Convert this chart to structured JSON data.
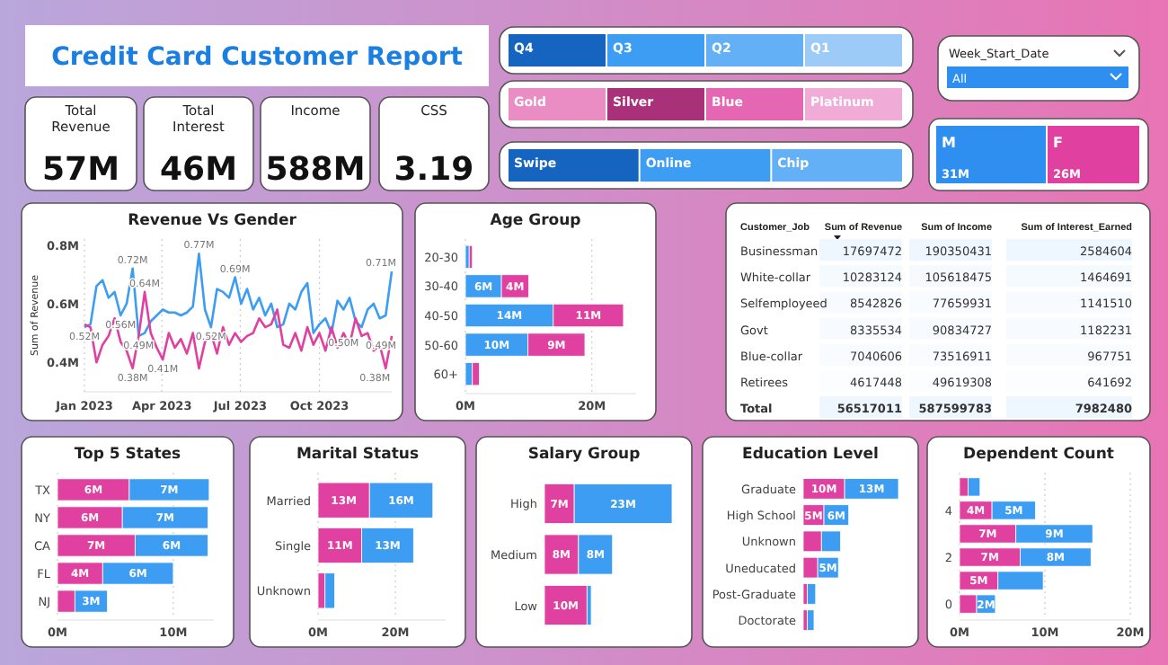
{
  "chart_data": [
    {
      "type": "other",
      "title": "Credit Card Customer Report"
    },
    {
      "type": "other",
      "title": "Total Revenue",
      "annotations": [
        "57M"
      ]
    },
    {
      "type": "other",
      "title": "Total Interest",
      "annotations": [
        "46M"
      ]
    },
    {
      "type": "other",
      "title": "Income",
      "annotations": [
        "588M"
      ]
    },
    {
      "type": "other",
      "title": "CSS",
      "annotations": [
        "3.19"
      ]
    },
    {
      "type": "other",
      "categories": [
        "Q4",
        "Q3",
        "Q2",
        "Q1"
      ],
      "colors": [
        "#1565c0",
        "#3d9df3",
        "#64b0f6",
        "#9ccbf8"
      ]
    },
    {
      "type": "other",
      "categories": [
        "Gold",
        "Silver",
        "Blue",
        "Platinum"
      ],
      "colors": [
        "#e98dc4",
        "#a8317a",
        "#e567b4",
        "#f0acd6"
      ]
    },
    {
      "type": "other",
      "categories": [
        "Swipe",
        "Online",
        "Chip"
      ],
      "colors": [
        "#1565c0",
        "#3d9df3",
        "#64b0f6"
      ]
    },
    {
      "type": "other",
      "title": "Week_Start_Date",
      "annotations": [
        "All"
      ]
    },
    {
      "type": "other",
      "categories": [
        "M",
        "F"
      ],
      "values": [
        31,
        26
      ],
      "value_labels": [
        "31M",
        "26M"
      ],
      "colors": [
        "#2f8ff0",
        "#e0409f"
      ]
    },
    {
      "type": "line",
      "title": "Revenue Vs Gender",
      "ylabel": "Sum of Revenue",
      "grid": "x",
      "x": [
        "2023-01-01",
        "2023-01-08",
        "2023-01-15",
        "2023-01-22",
        "2023-01-29",
        "2023-02-05",
        "2023-02-12",
        "2023-02-19",
        "2023-02-26",
        "2023-03-05",
        "2023-03-12",
        "2023-03-19",
        "2023-03-26",
        "2023-04-02",
        "2023-04-09",
        "2023-04-16",
        "2023-04-23",
        "2023-04-30",
        "2023-05-07",
        "2023-05-14",
        "2023-05-21",
        "2023-05-28",
        "2023-06-04",
        "2023-06-11",
        "2023-06-18",
        "2023-06-25",
        "2023-07-02",
        "2023-07-09",
        "2023-07-16",
        "2023-07-23",
        "2023-07-30",
        "2023-08-06",
        "2023-08-13",
        "2023-08-20",
        "2023-08-27",
        "2023-09-03",
        "2023-09-10",
        "2023-09-17",
        "2023-09-24",
        "2023-10-01",
        "2023-10-08",
        "2023-10-15",
        "2023-10-22",
        "2023-10-29",
        "2023-11-05",
        "2023-11-12",
        "2023-11-19",
        "2023-11-26",
        "2023-12-03",
        "2023-12-10",
        "2023-12-17",
        "2023-12-24"
      ],
      "xticks": [
        {
          "value": "2023-01-01",
          "label": "Jan 2023"
        },
        {
          "value": "2023-04-01",
          "label": "Apr 2023"
        },
        {
          "value": "2023-07-01",
          "label": "Jul 2023"
        },
        {
          "value": "2023-10-01",
          "label": "Oct 2023"
        }
      ],
      "xlim": [
        "2023-01-01",
        "2023-12-24"
      ],
      "ylim": [
        0.3,
        0.82
      ],
      "yticks": [
        {
          "value": 0.4,
          "label": "0.4M"
        },
        {
          "value": 0.6,
          "label": "0.6M"
        },
        {
          "value": 0.8,
          "label": "0.8M"
        }
      ],
      "series": [
        {
          "color": "#3d9df3",
          "values": [
            0.52,
            0.53,
            0.66,
            0.68,
            0.62,
            0.64,
            0.56,
            0.6,
            0.72,
            0.49,
            0.5,
            0.54,
            0.56,
            0.58,
            0.57,
            0.57,
            0.56,
            0.57,
            0.59,
            0.77,
            0.58,
            0.52,
            0.65,
            0.64,
            0.62,
            0.69,
            0.6,
            0.65,
            0.58,
            0.62,
            0.56,
            0.6,
            0.52,
            0.53,
            0.6,
            0.58,
            0.64,
            0.67,
            0.5,
            0.53,
            0.55,
            0.5,
            0.61,
            0.58,
            0.62,
            0.54,
            0.52,
            0.58,
            0.6,
            0.55,
            0.56,
            0.71
          ]
        },
        {
          "color": "#e0409f",
          "values": [
            0.53,
            0.52,
            0.4,
            0.46,
            0.49,
            0.55,
            0.47,
            0.44,
            0.38,
            0.49,
            0.64,
            0.5,
            0.45,
            0.41,
            0.5,
            0.45,
            0.48,
            0.43,
            0.5,
            0.38,
            0.47,
            0.5,
            0.43,
            0.52,
            0.46,
            0.5,
            0.47,
            0.49,
            0.5,
            0.55,
            0.52,
            0.53,
            0.58,
            0.46,
            0.45,
            0.5,
            0.44,
            0.52,
            0.46,
            0.5,
            0.44,
            0.52,
            0.45,
            0.5,
            0.46,
            0.55,
            0.49,
            0.5,
            0.44,
            0.46,
            0.38,
            0.49
          ]
        }
      ],
      "annotations": [
        {
          "text": "0.52M",
          "x": "2023-01-01",
          "y": 0.52
        },
        {
          "text": "0.56M",
          "x": "2023-02-12",
          "y": 0.56
        },
        {
          "text": "0.72M",
          "x": "2023-02-26",
          "y": 0.72
        },
        {
          "text": "0.38M",
          "x": "2023-02-26",
          "y": 0.38
        },
        {
          "text": "0.49M",
          "x": "2023-03-05",
          "y": 0.49
        },
        {
          "text": "0.64M",
          "x": "2023-03-12",
          "y": 0.64
        },
        {
          "text": "0.41M",
          "x": "2023-04-02",
          "y": 0.41
        },
        {
          "text": "0.77M",
          "x": "2023-05-14",
          "y": 0.77
        },
        {
          "text": "0.52M",
          "x": "2023-05-28",
          "y": 0.52
        },
        {
          "text": "0.69M",
          "x": "2023-06-25",
          "y": 0.69
        },
        {
          "text": "0.50M",
          "x": "2023-10-29",
          "y": 0.5
        },
        {
          "text": "0.38M",
          "x": "2023-12-17",
          "y": 0.38
        },
        {
          "text": "0.71M",
          "x": "2023-12-24",
          "y": 0.71
        },
        {
          "text": "0.49M",
          "x": "2023-12-24",
          "y": 0.49
        }
      ]
    },
    {
      "type": "bar",
      "orientation": "horizontal",
      "stacked": true,
      "title": "Age Group",
      "grid": "x",
      "categories": [
        "20-30",
        "30-40",
        "40-50",
        "50-60",
        "60+"
      ],
      "xlim": [
        0,
        27
      ],
      "xticks": [
        {
          "value": 0,
          "label": "0M"
        },
        {
          "value": 20,
          "label": "20M"
        }
      ],
      "series": [
        {
          "color": "#3d9df3",
          "values": [
            0.6,
            5.7,
            13.9,
            9.9,
            1.1
          ],
          "value_labels": [
            null,
            "6M",
            "14M",
            "10M",
            null
          ]
        },
        {
          "color": "#e0409f",
          "values": [
            0.5,
            4.3,
            11.1,
            9,
            1.1
          ],
          "value_labels": [
            null,
            "4M",
            "11M",
            "9M",
            null
          ]
        }
      ]
    },
    {
      "type": "heatmap",
      "ylabel": "Customer_Job",
      "categories": [
        "Sum of Revenue",
        "Sum of Income",
        "Sum of Interest_Earned"
      ],
      "y_categories": [
        "Businessman",
        "White-collar",
        "Selfemployeed",
        "Govt",
        "Blue-collar",
        "Retirees",
        "Total"
      ],
      "cell_labels": [
        [
          "17697472",
          "190350431",
          "2584604"
        ],
        [
          "10283124",
          "105618475",
          "1464691"
        ],
        [
          "8542826",
          "77659931",
          "1141510"
        ],
        [
          "8335534",
          "90834727",
          "1182231"
        ],
        [
          "7040606",
          "73516911",
          "967751"
        ],
        [
          "4617448",
          "49619308",
          "641692"
        ],
        [
          "56517011",
          "587599783",
          "7982480"
        ]
      ],
      "cells": [
        [
          17697472,
          190350431,
          2584604
        ],
        [
          10283124,
          105618475,
          1464691
        ],
        [
          8542826,
          77659931,
          1141510
        ],
        [
          8335534,
          90834727,
          1182231
        ],
        [
          7040606,
          73516911,
          967751
        ],
        [
          4617448,
          49619308,
          641692
        ],
        [
          56517011,
          587599783,
          7982480
        ]
      ]
    },
    {
      "type": "bar",
      "orientation": "horizontal",
      "stacked": true,
      "title": "Top 5 States",
      "grid": "x",
      "categories": [
        "TX",
        "NY",
        "CA",
        "FL",
        "NJ"
      ],
      "xlim": [
        0,
        13.5
      ],
      "xticks": [
        {
          "value": 0,
          "label": "0M"
        },
        {
          "value": 10,
          "label": "10M"
        }
      ],
      "series": [
        {
          "color": "#e0409f",
          "values": [
            6.2,
            5.6,
            6.7,
            3.9,
            1.5
          ],
          "value_labels": [
            "6M",
            "6M",
            "7M",
            "4M",
            null
          ]
        },
        {
          "color": "#3d9df3",
          "values": [
            6.9,
            7.4,
            6.3,
            6.1,
            2.8
          ],
          "value_labels": [
            "7M",
            "7M",
            "6M",
            "6M",
            "3M"
          ]
        }
      ]
    },
    {
      "type": "bar",
      "orientation": "horizontal",
      "stacked": true,
      "title": "Marital Status",
      "grid": "x",
      "categories": [
        "Married",
        "Single",
        "Unknown"
      ],
      "xlim": [
        0,
        33
      ],
      "xticks": [
        {
          "value": 0,
          "label": "0M"
        },
        {
          "value": 20,
          "label": "20M"
        }
      ],
      "series": [
        {
          "color": "#e0409f",
          "values": [
            13.3,
            11.3,
            1.8
          ],
          "value_labels": [
            "13M",
            "11M",
            null
          ]
        },
        {
          "color": "#3d9df3",
          "values": [
            16.4,
            13.4,
            2.5
          ],
          "value_labels": [
            "16M",
            "13M",
            null
          ]
        }
      ]
    },
    {
      "type": "bar",
      "orientation": "horizontal",
      "stacked": true,
      "title": "Salary Group",
      "categories": [
        "High",
        "Medium",
        "Low"
      ],
      "series": [
        {
          "color": "#e0409f",
          "values": [
            7,
            8,
            10
          ],
          "value_labels": [
            "7M",
            "8M",
            "10M"
          ]
        },
        {
          "color": "#3d9df3",
          "values": [
            23,
            8,
            1
          ],
          "value_labels": [
            "23M",
            "8M",
            null
          ]
        }
      ]
    },
    {
      "type": "bar",
      "orientation": "horizontal",
      "stacked": true,
      "title": "Education Level",
      "categories": [
        "Graduate",
        "High School",
        "Unknown",
        "Uneducated",
        "Post-Graduate",
        "Doctorate"
      ],
      "series": [
        {
          "color": "#e0409f",
          "values": [
            10,
            5,
            4.4,
            3.5,
            1,
            1
          ],
          "value_labels": [
            "10M",
            "5M",
            null,
            null,
            null,
            null
          ]
        },
        {
          "color": "#3d9df3",
          "values": [
            13,
            6,
            4.6,
            5,
            2,
            1.6
          ],
          "value_labels": [
            "13M",
            "6M",
            null,
            "5M",
            null,
            null
          ]
        }
      ]
    },
    {
      "type": "bar",
      "orientation": "horizontal",
      "stacked": true,
      "title": "Dependent Count",
      "grid": "x",
      "categories": [
        null,
        "4",
        null,
        "2",
        null,
        "0"
      ],
      "xlim": [
        0,
        20
      ],
      "xticks": [
        {
          "value": 0,
          "label": "0M"
        },
        {
          "value": 10,
          "label": "10M"
        },
        {
          "value": 20,
          "label": "20M"
        }
      ],
      "series": [
        {
          "color": "#e0409f",
          "values": [
            1,
            3.8,
            6.6,
            7.1,
            4.5,
            2
          ],
          "value_labels": [
            null,
            "4M",
            "7M",
            "7M",
            "5M",
            null
          ]
        },
        {
          "color": "#3d9df3",
          "values": [
            1.4,
            5.1,
            9,
            8.3,
            5.3,
            2.2
          ],
          "value_labels": [
            null,
            "5M",
            "9M",
            "8M",
            null,
            "2M"
          ]
        }
      ]
    }
  ]
}
